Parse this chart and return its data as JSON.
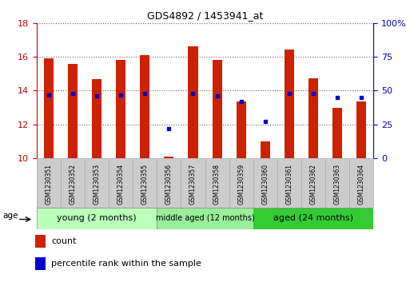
{
  "title": "GDS4892 / 1453941_at",
  "samples": [
    "GSM1230351",
    "GSM1230352",
    "GSM1230353",
    "GSM1230354",
    "GSM1230355",
    "GSM1230356",
    "GSM1230357",
    "GSM1230358",
    "GSM1230359",
    "GSM1230360",
    "GSM1230361",
    "GSM1230362",
    "GSM1230363",
    "GSM1230364"
  ],
  "count_values": [
    15.9,
    15.6,
    14.7,
    15.8,
    16.1,
    10.1,
    16.65,
    15.8,
    13.35,
    11.0,
    16.45,
    14.75,
    13.0,
    13.35
  ],
  "percentile_values": [
    47,
    48,
    46,
    47,
    48,
    22,
    48,
    46,
    42,
    27,
    48,
    48,
    45,
    45
  ],
  "ymin": 10,
  "ymax": 18,
  "yticks": [
    10,
    12,
    14,
    16,
    18
  ],
  "right_yticks": [
    0,
    25,
    50,
    75,
    100
  ],
  "bar_color": "#cc2200",
  "dot_color": "#0000cc",
  "groups": [
    {
      "label": "young (2 months)",
      "start": 0,
      "end": 5,
      "color": "#bbffbb"
    },
    {
      "label": "middle aged (12 months)",
      "start": 5,
      "end": 9,
      "color": "#99ee99"
    },
    {
      "label": "aged (24 months)",
      "start": 9,
      "end": 14,
      "color": "#33cc33"
    }
  ],
  "age_label": "age",
  "legend_count": "count",
  "legend_pct": "percentile rank within the sample",
  "left_tick_color": "#cc0000",
  "right_tick_color": "#0000cc",
  "grid_color": "#666666",
  "bg_color": "#ffffff",
  "bar_width": 0.4
}
